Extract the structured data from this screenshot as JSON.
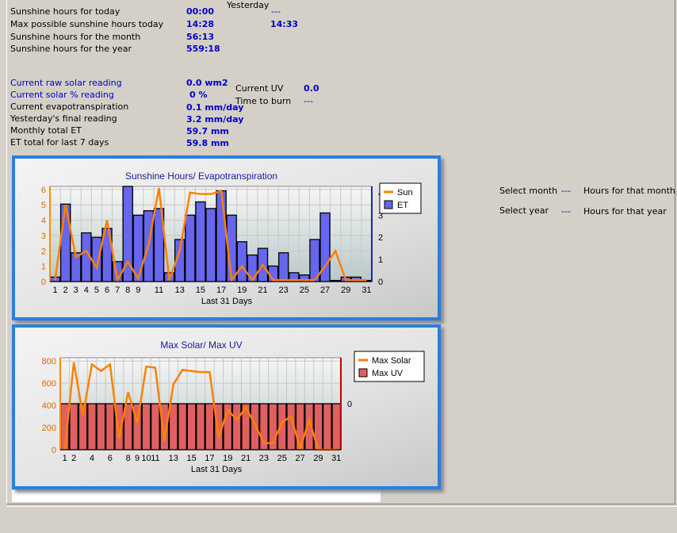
{
  "sunshine": {
    "today_label": "Sunshine hours for today",
    "today_value": "00:00",
    "maxpossible_label": "Max possible sunshine hours today",
    "maxpossible_value": "14:28",
    "month_label": "Sunshine hours for the month",
    "month_value": "56:13",
    "year_label": "Sunshine hours for the year",
    "year_value": "559:18",
    "yesterday_label": "Yesterday",
    "yesterday_value": "---",
    "yesterday_max": "14:33"
  },
  "solar": {
    "raw_label": "Current raw solar reading",
    "raw_value": "0.0 wm2",
    "pct_label": "Current solar % reading",
    "pct_value": "0 %",
    "et_label": "Current evapotranspiration",
    "et_value": "0.1 mm/day",
    "yesterday_et_label": "Yesterday's final reading",
    "yesterday_et_value": "3.2 mm/day",
    "monthly_et_label": "Monthly total ET",
    "monthly_et_value": "59.7 mm",
    "et7_label": "ET total for last 7 days",
    "et7_value": "59.8 mm"
  },
  "uv": {
    "current_label": "Current UV",
    "current_value": "0.0",
    "burn_label": "Time to burn",
    "burn_value": "---"
  },
  "selectors": {
    "month_label": "Select month",
    "month_value": "---",
    "month_hours_label": "Hours for that month",
    "year_label": "Select year",
    "year_value": "---",
    "year_hours_label": "Hours for that year"
  },
  "colors": {
    "panel_border": "#2a7fdc",
    "sun_line": "#ff8c00",
    "et_bar": "#6666ee",
    "max_uv_bar": "#e06060",
    "text_blue": "#0000c8"
  },
  "chart_data": [
    {
      "type": "bar",
      "title": "Sunshine Hours/ Evapotranspiration",
      "xlabel": "Last 31 Days",
      "x": [
        1,
        2,
        3,
        4,
        5,
        6,
        7,
        8,
        9,
        10,
        11,
        12,
        13,
        14,
        15,
        16,
        17,
        18,
        19,
        20,
        21,
        22,
        23,
        24,
        25,
        26,
        27,
        28,
        29,
        30,
        31
      ],
      "x_ticks": [
        "1",
        "2",
        "3",
        "4",
        "5",
        "6",
        "7",
        "8",
        "9",
        "11",
        "13",
        "15",
        "17",
        "19",
        "21",
        "23",
        "25",
        "27",
        "29",
        "31"
      ],
      "y_left_ticks": [
        "0",
        "1",
        "2",
        "3",
        "4",
        "5",
        "6"
      ],
      "y_right_ticks": [
        "0",
        "1",
        "2",
        "3",
        "4"
      ],
      "ylim_left": [
        0,
        6.2
      ],
      "ylim_right": [
        0,
        4.3
      ],
      "legend_position": "top-right",
      "series": [
        {
          "name": "Sun",
          "kind": "line",
          "axis": "left",
          "values": [
            0.1,
            5.0,
            1.6,
            2.0,
            0.9,
            4.0,
            0.1,
            1.3,
            0.2,
            2.4,
            6.1,
            0.1,
            2.0,
            5.8,
            5.7,
            5.7,
            5.9,
            0.1,
            1.0,
            0.1,
            1.1,
            0.1,
            0.1,
            0.1,
            0.1,
            0.1,
            1.0,
            2.0,
            0.1,
            0.1,
            0.1
          ]
        },
        {
          "name": "ET",
          "kind": "bar",
          "axis": "right",
          "values": [
            0.2,
            3.5,
            1.3,
            2.2,
            2.0,
            2.4,
            0.9,
            4.3,
            3.0,
            3.2,
            3.3,
            0.4,
            1.9,
            3.0,
            3.6,
            3.3,
            4.1,
            3.0,
            1.8,
            1.2,
            1.5,
            0.7,
            1.3,
            0.4,
            0.3,
            1.9,
            3.1,
            0.05,
            0.2,
            0.2,
            0.05
          ]
        }
      ]
    },
    {
      "type": "bar",
      "title": "Max Solar/ Max UV",
      "xlabel": "Last 31 Days",
      "x": [
        1,
        2,
        3,
        4,
        5,
        6,
        7,
        8,
        9,
        10,
        11,
        12,
        13,
        14,
        15,
        16,
        17,
        18,
        19,
        20,
        21,
        22,
        23,
        24,
        25,
        26,
        27,
        28,
        29,
        30,
        31
      ],
      "x_ticks": [
        "1",
        "2",
        "4",
        "6",
        "8",
        "9",
        "10",
        "11",
        "13",
        "15",
        "17",
        "19",
        "21",
        "23",
        "25",
        "27",
        "29",
        "31"
      ],
      "y_left_ticks": [
        "0",
        "200",
        "400",
        "600",
        "800"
      ],
      "y_right_ticks": [
        "0"
      ],
      "ylim_left": [
        0,
        830
      ],
      "legend_position": "top-right",
      "series": [
        {
          "name": "Max Solar",
          "kind": "line",
          "axis": "left",
          "values": [
            0,
            790,
            310,
            770,
            710,
            770,
            100,
            520,
            240,
            750,
            740,
            80,
            590,
            720,
            710,
            700,
            700,
            110,
            360,
            270,
            380,
            230,
            60,
            60,
            250,
            300,
            10,
            270,
            0,
            0,
            0
          ]
        },
        {
          "name": "Max UV",
          "kind": "bar",
          "axis": "right",
          "values": [
            0,
            0,
            0,
            0,
            0,
            0,
            0,
            0,
            0,
            0,
            0,
            0,
            0,
            0,
            0,
            0,
            0,
            0,
            0,
            0,
            0,
            0,
            0,
            0,
            0,
            0,
            0,
            0,
            0,
            0,
            0
          ]
        }
      ]
    }
  ]
}
